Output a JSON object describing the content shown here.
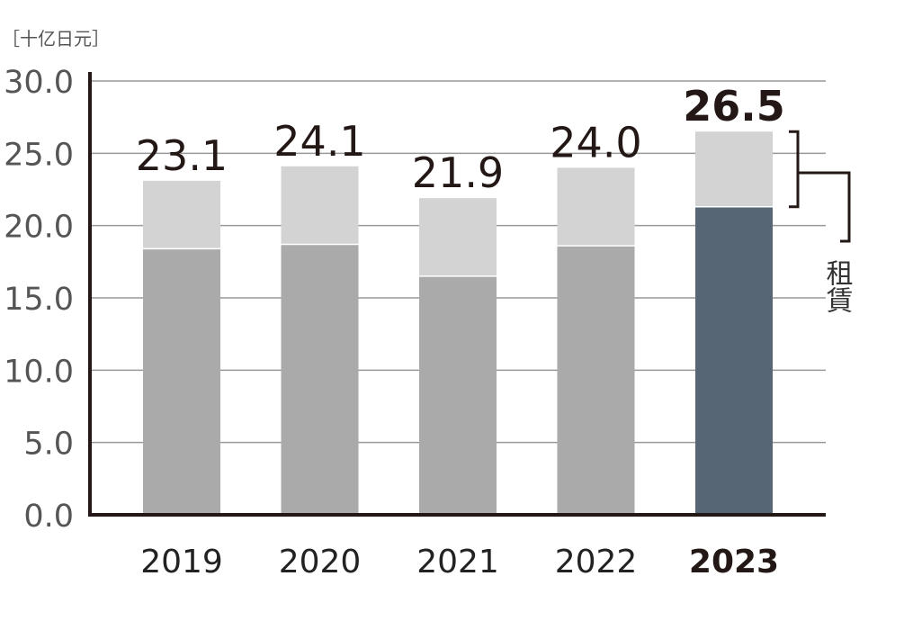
{
  "chart_data": {
    "type": "bar",
    "stacked": true,
    "unit_label": "［十亿日元］",
    "categories": [
      "2019",
      "2020",
      "2021",
      "2022",
      "2023"
    ],
    "highlight_category": "2023",
    "series": [
      {
        "values": [
          18.4,
          18.7,
          16.5,
          18.6,
          21.3
        ]
      },
      {
        "values": [
          4.7,
          5.4,
          5.4,
          5.4,
          5.2
        ]
      }
    ],
    "totals": [
      23.1,
      24.1,
      21.9,
      24.0,
      26.5
    ],
    "total_labels": [
      "23.1",
      "24.1",
      "21.9",
      "24.0",
      "26.5"
    ],
    "y_ticks": [
      "0.0",
      "5.0",
      "10.0",
      "15.0",
      "20.0",
      "25.0",
      "30.0"
    ],
    "ylim": [
      0,
      30
    ],
    "grid": true,
    "annotation": {
      "text": "租賃",
      "category": "2023",
      "segment": "upper"
    },
    "colors": {
      "lower": "#aaaaaa",
      "upper": "#d3d3d3",
      "highlight_lower": "#566675",
      "highlight_upper": "#d3d3d3",
      "grid": "#999999",
      "axis": "#231815"
    }
  }
}
